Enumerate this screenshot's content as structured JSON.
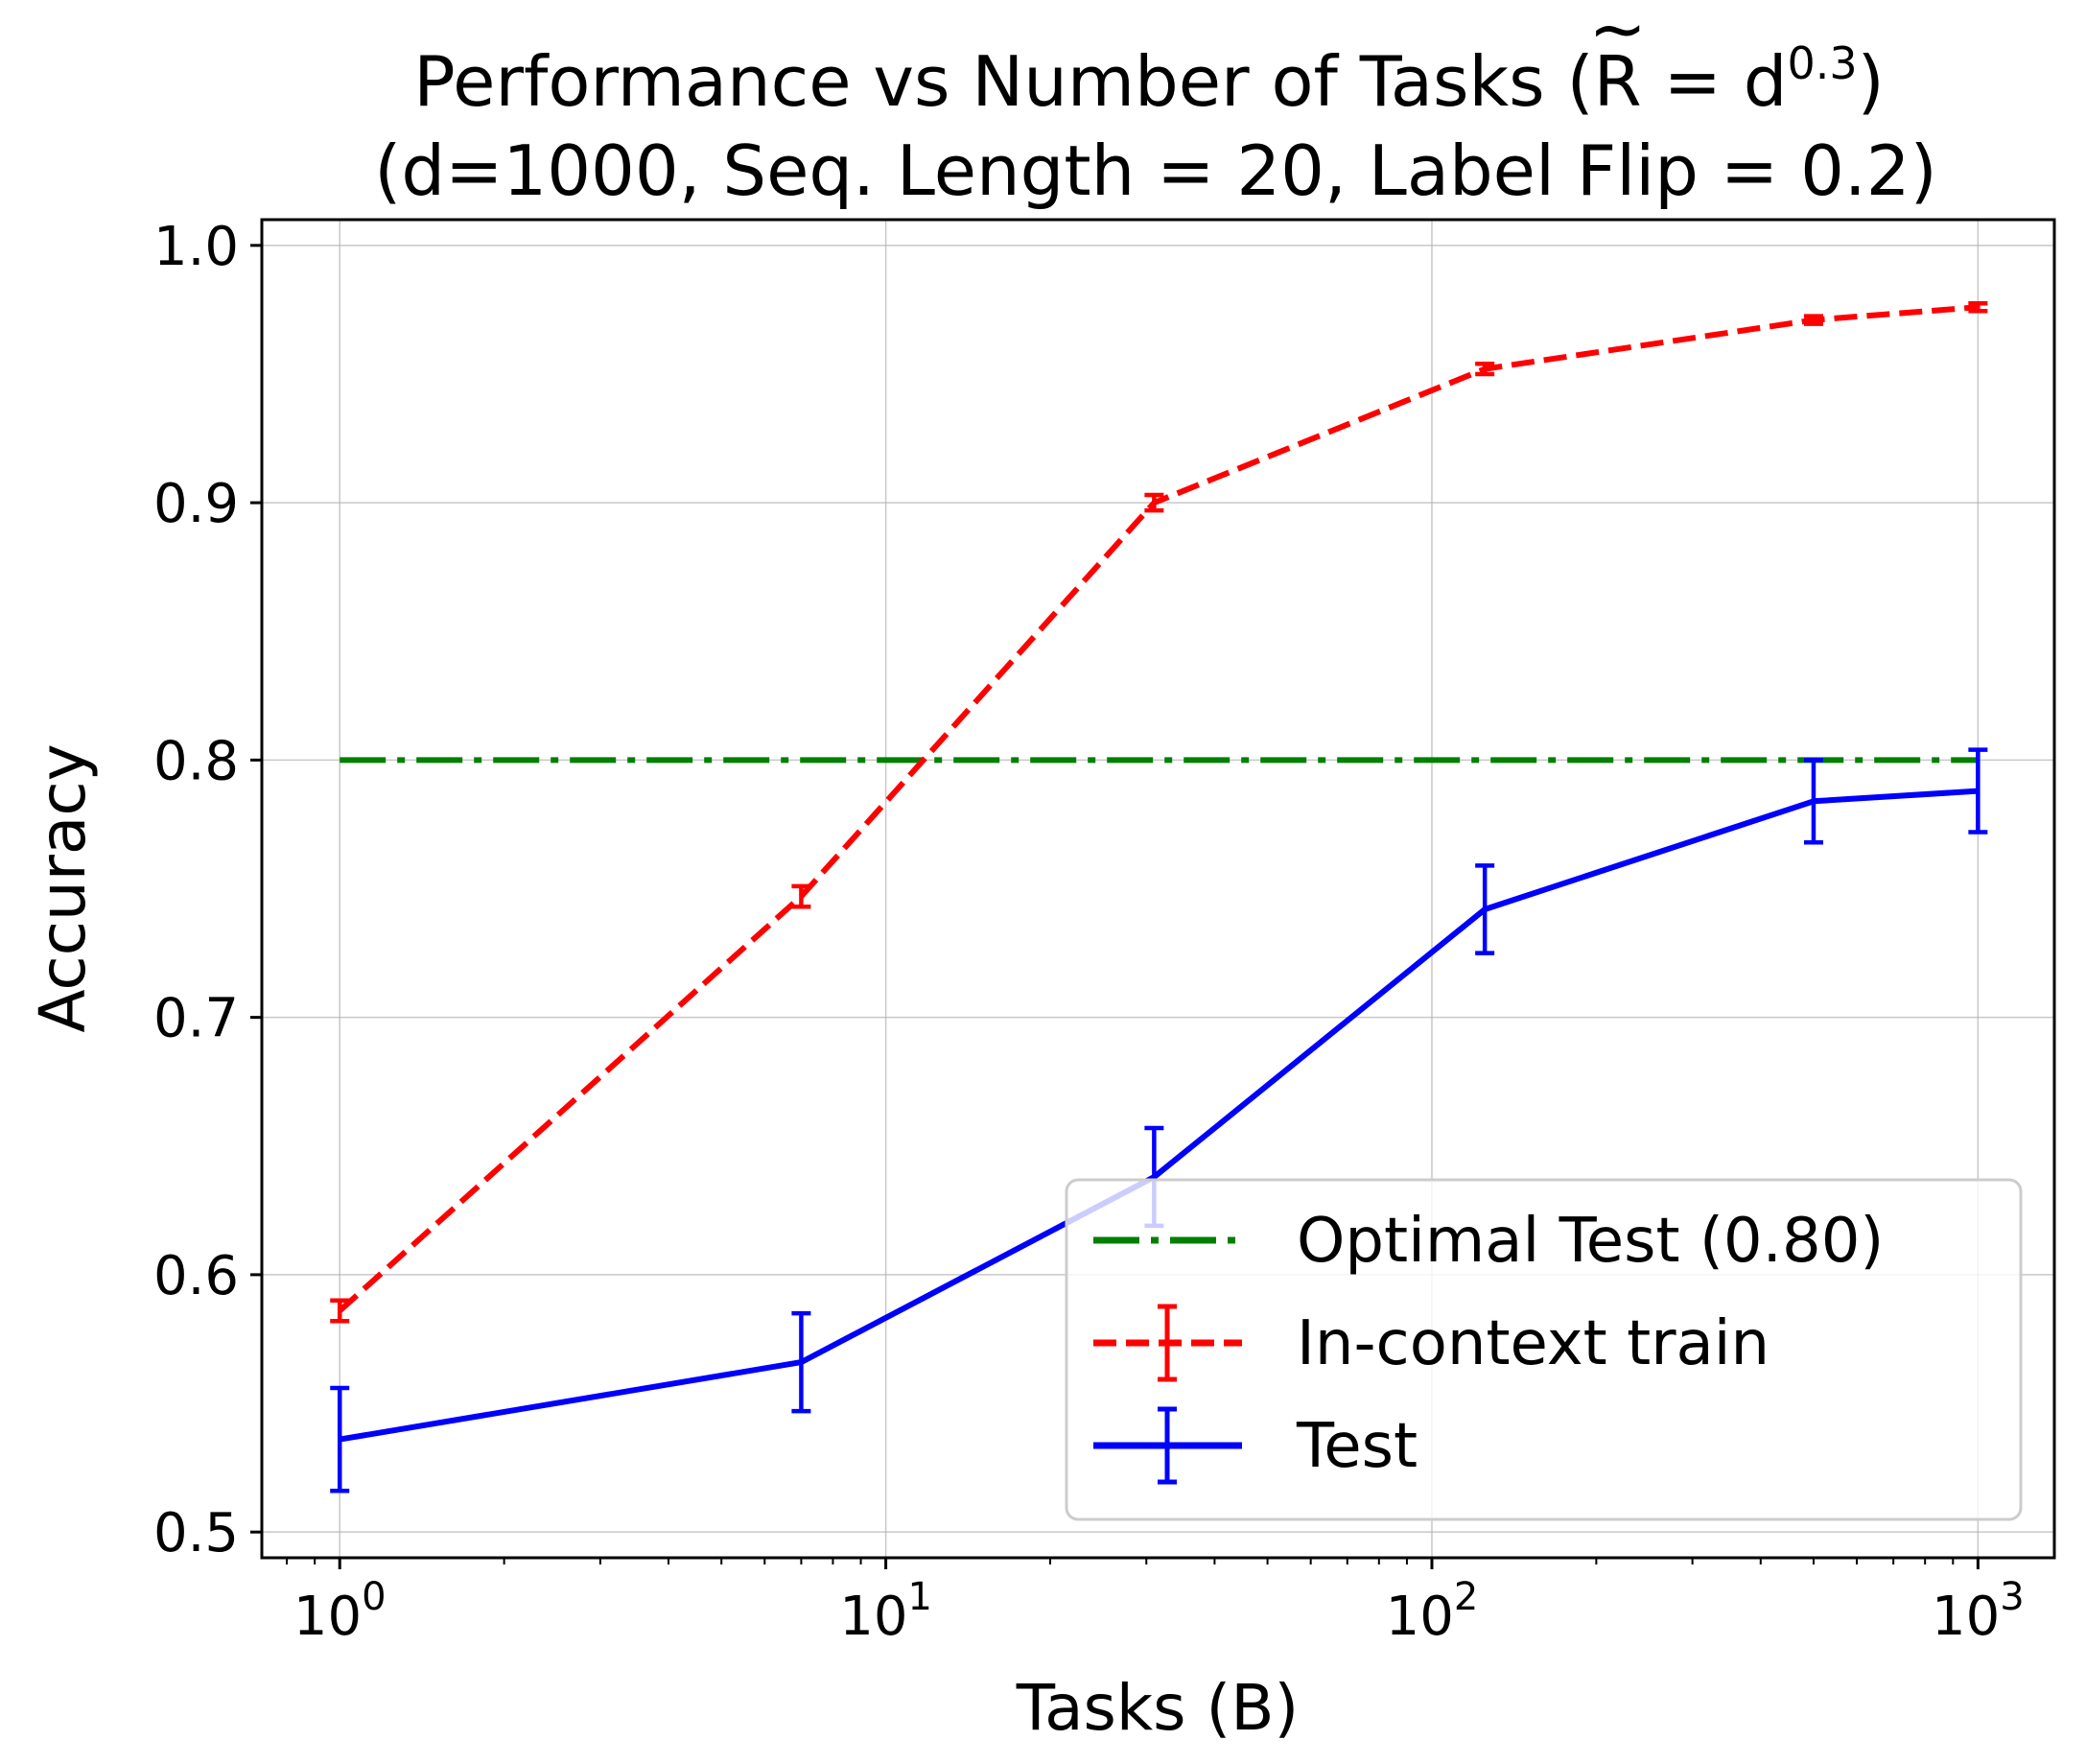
{
  "chart_data": {
    "type": "line",
    "title_line1_main": "Performance vs Number of Tasks (",
    "title_line1_r": "R",
    "title_line1_tilde": "~",
    "title_line1_eq": " = d",
    "title_line1_exp": "0.3",
    "title_line1_close": ")",
    "title_line2": "(d=1000, Seq. Length = 20, Label Flip = 0.2)",
    "xlabel": "Tasks (B)",
    "ylabel": "Accuracy",
    "xscale": "log",
    "xlim": [
      0.72,
      1380
    ],
    "ylim": [
      0.49,
      1.01
    ],
    "grid": true,
    "legend_position": "lower right",
    "x_ticks": [
      {
        "base": "10",
        "exp": "0",
        "value": 1
      },
      {
        "base": "10",
        "exp": "1",
        "value": 10
      },
      {
        "base": "10",
        "exp": "2",
        "value": 100
      },
      {
        "base": "10",
        "exp": "3",
        "value": 1000
      }
    ],
    "y_ticks": [
      "0.5",
      "0.6",
      "0.7",
      "0.8",
      "0.9",
      "1.0"
    ],
    "series": [
      {
        "name": "Optimal Test (0.80)",
        "style": "dashdot",
        "color": "#008000",
        "x": [
          1,
          1000
        ],
        "y": [
          0.8,
          0.8
        ]
      },
      {
        "name": "In-context train",
        "style": "dashed",
        "color": "#ff0000",
        "x": [
          1,
          7,
          31,
          125,
          500,
          1000
        ],
        "y": [
          0.586,
          0.747,
          0.9,
          0.952,
          0.971,
          0.976
        ],
        "err": [
          0.004,
          0.004,
          0.003,
          0.002,
          0.0015,
          0.0015
        ]
      },
      {
        "name": "Test",
        "style": "solid",
        "color": "#0000ff",
        "x": [
          1,
          7,
          31,
          125,
          500,
          1000
        ],
        "y": [
          0.536,
          0.566,
          0.638,
          0.742,
          0.784,
          0.788
        ],
        "err": [
          0.02,
          0.019,
          0.019,
          0.017,
          0.016,
          0.016
        ]
      }
    ]
  }
}
